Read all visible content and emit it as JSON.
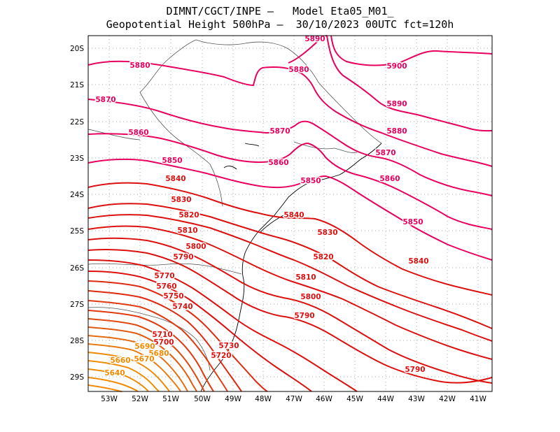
{
  "title_line1": "DIMNT/CGCT/INPE –   Model Eta05_M01_",
  "title_line2": "Geopotential Height 500hPa –  30/10/2023 00UTC fct=120h",
  "lat_labels": [
    "20S",
    "21S",
    "22S",
    "23S",
    "24S",
    "25S",
    "26S",
    "27S",
    "28S",
    "29S"
  ],
  "lon_labels": [
    "53W",
    "52W",
    "51W",
    "50W",
    "49W",
    "48W",
    "47W",
    "46W",
    "45W",
    "44W",
    "43W",
    "42W",
    "41W"
  ],
  "contour_labels": [
    {
      "text": "5890",
      "level": 5890
    },
    {
      "text": "5900",
      "level": 5900
    },
    {
      "text": "5880",
      "level": 5880
    },
    {
      "text": "5880",
      "level": 5880
    },
    {
      "text": "5870",
      "level": 5870
    },
    {
      "text": "5890",
      "level": 5890
    },
    {
      "text": "5860",
      "level": 5860
    },
    {
      "text": "5870",
      "level": 5870
    },
    {
      "text": "5880",
      "level": 5880
    },
    {
      "text": "5850",
      "level": 5850
    },
    {
      "text": "5860",
      "level": 5860
    },
    {
      "text": "5870",
      "level": 5870
    },
    {
      "text": "5840",
      "level": 5840
    },
    {
      "text": "5850",
      "level": 5850
    },
    {
      "text": "5860",
      "level": 5860
    },
    {
      "text": "5830",
      "level": 5830
    },
    {
      "text": "5840",
      "level": 5840
    },
    {
      "text": "5820",
      "level": 5820
    },
    {
      "text": "5850",
      "level": 5850
    },
    {
      "text": "5810",
      "level": 5810
    },
    {
      "text": "5830",
      "level": 5830
    },
    {
      "text": "5800",
      "level": 5800
    },
    {
      "text": "5790",
      "level": 5790
    },
    {
      "text": "5820",
      "level": 5820
    },
    {
      "text": "5840",
      "level": 5840
    },
    {
      "text": "5770",
      "level": 5770
    },
    {
      "text": "5810",
      "level": 5810
    },
    {
      "text": "5760",
      "level": 5760
    },
    {
      "text": "5750",
      "level": 5750
    },
    {
      "text": "5800",
      "level": 5800
    },
    {
      "text": "5740",
      "level": 5740
    },
    {
      "text": "5790",
      "level": 5790
    },
    {
      "text": "5710",
      "level": 5710
    },
    {
      "text": "5700",
      "level": 5700
    },
    {
      "text": "5730",
      "level": 5730
    },
    {
      "text": "5690",
      "level": 5690
    },
    {
      "text": "5680",
      "level": 5680
    },
    {
      "text": "5720",
      "level": 5720
    },
    {
      "text": "5670",
      "level": 5670
    },
    {
      "text": "5660",
      "level": 5660
    },
    {
      "text": "5790",
      "level": 5790
    },
    {
      "text": "5640",
      "level": 5640
    }
  ],
  "colors": {
    "high": "#e8005e",
    "mid": "#dd1010",
    "low": "#f08a00",
    "coast": "#000000",
    "border": "#555555",
    "grid": "#aaaaaa"
  }
}
